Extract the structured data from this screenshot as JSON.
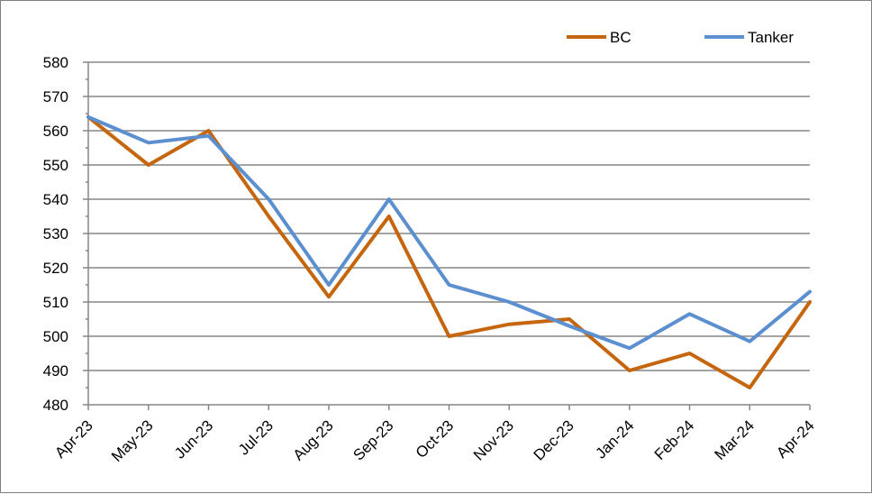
{
  "chart_data": {
    "type": "line",
    "categories": [
      "Apr-23",
      "May-23",
      "Jun-23",
      "Jul-23",
      "Aug-23",
      "Sep-23",
      "Oct-23",
      "Nov-23",
      "Dec-23",
      "Jan-24",
      "Feb-24",
      "Mar-24",
      "Apr-24"
    ],
    "series": [
      {
        "name": "BC",
        "color": "#c5660f",
        "values": [
          564,
          550,
          560,
          535,
          511.5,
          535,
          500,
          503.5,
          505,
          490,
          495,
          485,
          510
        ]
      },
      {
        "name": "Tanker",
        "color": "#5b8fd0",
        "values": [
          564,
          556.5,
          558.5,
          540,
          515,
          540,
          515,
          510,
          503,
          496.5,
          506.5,
          498.5,
          513
        ]
      }
    ],
    "ylim": [
      480,
      580
    ],
    "yticks": [
      "480",
      "490",
      "500",
      "510",
      "520",
      "530",
      "540",
      "550",
      "560",
      "570",
      "580"
    ],
    "grid": true,
    "legend_position": "top-right"
  }
}
